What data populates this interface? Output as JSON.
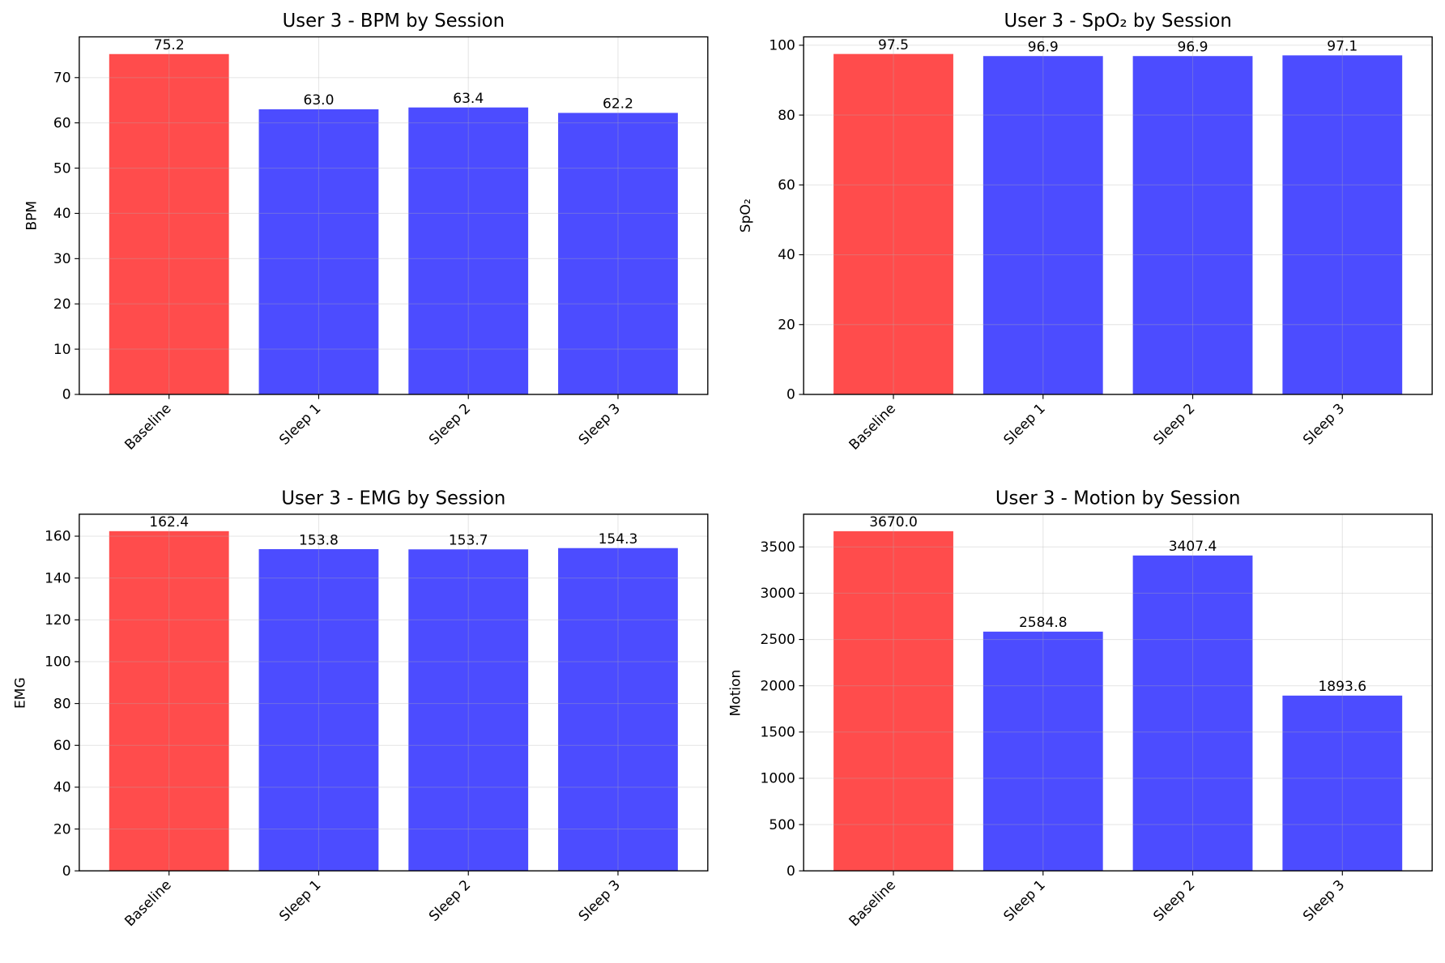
{
  "colors": {
    "baseline": "#ff4c4c",
    "sleep": "#4c4cff",
    "grid": "#e6e6e6",
    "axis": "#000000"
  },
  "chart_data": [
    {
      "type": "bar",
      "title": "User 3 - BPM by Session",
      "xlabel": "",
      "ylabel": "BPM",
      "categories": [
        "Baseline",
        "Sleep 1",
        "Sleep 2",
        "Sleep 3"
      ],
      "values": [
        75.2,
        63.0,
        63.4,
        62.2
      ],
      "value_labels": [
        "75.2",
        "63.0",
        "63.4",
        "62.2"
      ],
      "ylim": [
        0,
        79
      ],
      "yticks": [
        0,
        10,
        20,
        30,
        40,
        50,
        60,
        70
      ],
      "ytick_labels": [
        "0",
        "10",
        "20",
        "30",
        "40",
        "50",
        "60",
        "70"
      ],
      "grid": true,
      "xtick_rotation": 45
    },
    {
      "type": "bar",
      "title": "User 3 - SpO₂ by Session",
      "xlabel": "",
      "ylabel": "SpO₂",
      "categories": [
        "Baseline",
        "Sleep 1",
        "Sleep 2",
        "Sleep 3"
      ],
      "values": [
        97.5,
        96.9,
        96.9,
        97.1
      ],
      "value_labels": [
        "97.5",
        "96.9",
        "96.9",
        "97.1"
      ],
      "ylim": [
        0,
        102.4
      ],
      "yticks": [
        0,
        20,
        40,
        60,
        80,
        100
      ],
      "ytick_labels": [
        "0",
        "20",
        "40",
        "60",
        "80",
        "100"
      ],
      "grid": true,
      "xtick_rotation": 45
    },
    {
      "type": "bar",
      "title": "User 3 - EMG by Session",
      "xlabel": "",
      "ylabel": "EMG",
      "categories": [
        "Baseline",
        "Sleep 1",
        "Sleep 2",
        "Sleep 3"
      ],
      "values": [
        162.4,
        153.8,
        153.7,
        154.3
      ],
      "value_labels": [
        "162.4",
        "153.8",
        "153.7",
        "154.3"
      ],
      "ylim": [
        0,
        170.5
      ],
      "yticks": [
        0,
        20,
        40,
        60,
        80,
        100,
        120,
        140,
        160
      ],
      "ytick_labels": [
        "0",
        "20",
        "40",
        "60",
        "80",
        "100",
        "120",
        "140",
        "160"
      ],
      "grid": true,
      "xtick_rotation": 45
    },
    {
      "type": "bar",
      "title": "User 3 - Motion by Session",
      "xlabel": "",
      "ylabel": "Motion",
      "categories": [
        "Baseline",
        "Sleep 1",
        "Sleep 2",
        "Sleep 3"
      ],
      "values": [
        3670.0,
        2584.8,
        3407.4,
        1893.6
      ],
      "value_labels": [
        "3670.0",
        "2584.8",
        "3407.4",
        "1893.6"
      ],
      "ylim": [
        0,
        3853.5
      ],
      "yticks": [
        0,
        500,
        1000,
        1500,
        2000,
        2500,
        3000,
        3500
      ],
      "ytick_labels": [
        "0",
        "500",
        "1000",
        "1500",
        "2000",
        "2500",
        "3000",
        "3500"
      ],
      "grid": true,
      "xtick_rotation": 45
    }
  ]
}
